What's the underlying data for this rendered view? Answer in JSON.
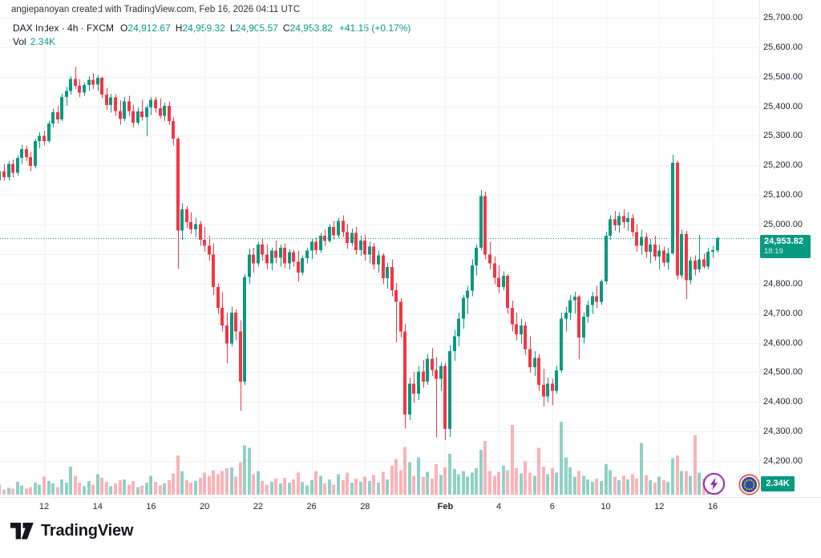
{
  "header": {
    "attribution": "angiepanoyan created with TradingView.com, Feb 16, 2026 04:11 UTC"
  },
  "legend": {
    "symbol_title": "DAX Index · 4h · FXCM",
    "o_label": "O",
    "o_value": "24,912.67",
    "h_label": "H",
    "h_value": "24,959.32",
    "l_label": "L",
    "l_value": "24,905.57",
    "c_label": "C",
    "c_value": "24,953.82",
    "change": "+41.15 (+0.17%)",
    "vol_label": "Vol",
    "vol_value": "2.34K"
  },
  "price_badge": {
    "price": "24,953.82",
    "countdown": "18:19"
  },
  "volume_badge": {
    "value": "2.34K"
  },
  "logo": {
    "text": "TradingView"
  },
  "icons": {
    "boost": "lightning-icon",
    "market_flag": "eu-flag-icon",
    "logo_mark": "tradingview-mark-icon"
  },
  "colors": {
    "up": "#089981",
    "down": "#f23645",
    "vol_up": "rgba(8,153,129,0.45)",
    "vol_down": "rgba(242,54,69,0.38)",
    "grid": "#f0f2f5",
    "axis_border": "#e4e7ec",
    "text": "#131722",
    "badge_bg": "#089981",
    "badge_text": "#ffffff",
    "lightning_purple": "#9c27b0",
    "eu_blue": "#2a4fa2",
    "eu_ring_red": "#ef5350",
    "eu_star_yellow": "#ffcc00"
  },
  "chart_data": {
    "type": "candlestick",
    "symbol": "DAX Index",
    "interval": "4h",
    "exchange": "FXCM",
    "last": {
      "open": 24912.67,
      "high": 24959.32,
      "low": 24905.57,
      "close": 24953.82,
      "change": 41.15,
      "change_pct": 0.17
    },
    "price_line": 24953.82,
    "current_volume_k": 2.34,
    "y_axis": {
      "min": 24200,
      "max": 25700,
      "step": 100,
      "ticks": [
        {
          "label": "25,700.00",
          "value": 25700
        },
        {
          "label": "25,600.00",
          "value": 25600
        },
        {
          "label": "25,500.00",
          "value": 25500
        },
        {
          "label": "25,400.00",
          "value": 25400
        },
        {
          "label": "25,300.00",
          "value": 25300
        },
        {
          "label": "25,200.00",
          "value": 25200
        },
        {
          "label": "25,100.00",
          "value": 25100
        },
        {
          "label": "25,000.00",
          "value": 25000
        },
        {
          "label": "24,900.00",
          "value": 24900
        },
        {
          "label": "24,800.00",
          "value": 24800
        },
        {
          "label": "24,700.00",
          "value": 24700
        },
        {
          "label": "24,600.00",
          "value": 24600
        },
        {
          "label": "24,500.00",
          "value": 24500
        },
        {
          "label": "24,400.00",
          "value": 24400
        },
        {
          "label": "24,300.00",
          "value": 24300
        },
        {
          "label": "24,200.00",
          "value": 24200
        }
      ]
    },
    "x_axis": {
      "ticks": [
        {
          "label": "12",
          "index": 10
        },
        {
          "label": "14",
          "index": 22
        },
        {
          "label": "16",
          "index": 34
        },
        {
          "label": "20",
          "index": 46
        },
        {
          "label": "22",
          "index": 58
        },
        {
          "label": "26",
          "index": 70
        },
        {
          "label": "28",
          "index": 82
        },
        {
          "label": "Feb",
          "index": 100,
          "bold": true
        },
        {
          "label": "4",
          "index": 112
        },
        {
          "label": "6",
          "index": 124
        },
        {
          "label": "10",
          "index": 136
        },
        {
          "label": "12",
          "index": 148
        },
        {
          "label": "16",
          "index": 160
        }
      ]
    },
    "candles": [
      [
        25150,
        25195,
        25115,
        25180
      ],
      [
        25180,
        25205,
        25150,
        25160
      ],
      [
        25160,
        25215,
        25150,
        25205
      ],
      [
        25205,
        25220,
        25160,
        25175
      ],
      [
        25175,
        25235,
        25165,
        25225
      ],
      [
        25225,
        25270,
        25205,
        25255
      ],
      [
        25255,
        25268,
        25215,
        25228
      ],
      [
        25228,
        25245,
        25180,
        25198
      ],
      [
        25198,
        25290,
        25190,
        25282
      ],
      [
        25282,
        25312,
        25258,
        25300
      ],
      [
        25300,
        25318,
        25268,
        25282
      ],
      [
        25282,
        25352,
        25276,
        25342
      ],
      [
        25342,
        25392,
        25330,
        25380
      ],
      [
        25380,
        25402,
        25342,
        25356
      ],
      [
        25356,
        25442,
        25350,
        25432
      ],
      [
        25432,
        25465,
        25402,
        25452
      ],
      [
        25452,
        25502,
        25440,
        25492
      ],
      [
        25492,
        25533,
        25458,
        25470
      ],
      [
        25470,
        25492,
        25430,
        25446
      ],
      [
        25446,
        25482,
        25436,
        25472
      ],
      [
        25472,
        25502,
        25452,
        25490
      ],
      [
        25490,
        25512,
        25458,
        25474
      ],
      [
        25474,
        25506,
        25452,
        25496
      ],
      [
        25496,
        25500,
        25428,
        25440
      ],
      [
        25440,
        25462,
        25388,
        25404
      ],
      [
        25404,
        25442,
        25378,
        25430
      ],
      [
        25430,
        25441,
        25368,
        25384
      ],
      [
        25384,
        25420,
        25338,
        25358
      ],
      [
        25358,
        25432,
        25350,
        25416
      ],
      [
        25416,
        25436,
        25368,
        25384
      ],
      [
        25384,
        25406,
        25328,
        25344
      ],
      [
        25344,
        25396,
        25338,
        25382
      ],
      [
        25382,
        25422,
        25352,
        25364
      ],
      [
        25364,
        25406,
        25298,
        25396
      ],
      [
        25396,
        25432,
        25370,
        25422
      ],
      [
        25422,
        25432,
        25378,
        25394
      ],
      [
        25394,
        25426,
        25358,
        25368
      ],
      [
        25368,
        25412,
        25350,
        25402
      ],
      [
        25402,
        25416,
        25338,
        25350
      ],
      [
        25350,
        25362,
        25268,
        25290
      ],
      [
        25290,
        25296,
        24850,
        24980
      ],
      [
        24980,
        25072,
        24948,
        25052
      ],
      [
        25052,
        25062,
        24988,
        25008
      ],
      [
        25008,
        25042,
        24968,
        24984
      ],
      [
        24984,
        25022,
        24958,
        25002
      ],
      [
        25002,
        25012,
        24928,
        24948
      ],
      [
        24948,
        24992,
        24908,
        24928
      ],
      [
        24928,
        24962,
        24878,
        24898
      ],
      [
        24898,
        24936,
        24762,
        24788
      ],
      [
        24788,
        24802,
        24698,
        24718
      ],
      [
        24718,
        24772,
        24638,
        24658
      ],
      [
        24658,
        24702,
        24531,
        24598
      ],
      [
        24598,
        24722,
        24588,
        24702
      ],
      [
        24702,
        24712,
        24608,
        24638
      ],
      [
        24638,
        24676,
        24369,
        24468
      ],
      [
        24468,
        24832,
        24456,
        24822
      ],
      [
        24822,
        24919,
        24798,
        24898
      ],
      [
        24898,
        24922,
        24838,
        24868
      ],
      [
        24868,
        24942,
        24858,
        24932
      ],
      [
        24932,
        24952,
        24878,
        24898
      ],
      [
        24898,
        24932,
        24848,
        24868
      ],
      [
        24868,
        24922,
        24846,
        24912
      ],
      [
        24912,
        24946,
        24868,
        24888
      ],
      [
        24888,
        24932,
        24858,
        24922
      ],
      [
        24922,
        24936,
        24852,
        24868
      ],
      [
        24868,
        24916,
        24848,
        24906
      ],
      [
        24906,
        24914,
        24858,
        24874
      ],
      [
        24874,
        24912,
        24806,
        24838
      ],
      [
        24838,
        24896,
        24828,
        24886
      ],
      [
        24886,
        24922,
        24868,
        24912
      ],
      [
        24912,
        24952,
        24884,
        24942
      ],
      [
        24942,
        24956,
        24898,
        24914
      ],
      [
        24914,
        24972,
        24904,
        24962
      ],
      [
        24962,
        24982,
        24928,
        24944
      ],
      [
        24944,
        25002,
        24938,
        24992
      ],
      [
        24992,
        25012,
        24948,
        24964
      ],
      [
        24964,
        25023,
        24954,
        25012
      ],
      [
        25012,
        25032,
        24958,
        24974
      ],
      [
        24974,
        25002,
        24918,
        24938
      ],
      [
        24938,
        24986,
        24928,
        24972
      ],
      [
        24972,
        24992,
        24898,
        24914
      ],
      [
        24914,
        24962,
        24894,
        24946
      ],
      [
        24946,
        24966,
        24878,
        24898
      ],
      [
        24898,
        24942,
        24868,
        24926
      ],
      [
        24926,
        24938,
        24848,
        24864
      ],
      [
        24864,
        24912,
        24838,
        24896
      ],
      [
        24896,
        24902,
        24798,
        24818
      ],
      [
        24818,
        24872,
        24783,
        24856
      ],
      [
        24856,
        24882,
        24758,
        24778
      ],
      [
        24778,
        24802,
        24601,
        24738
      ],
      [
        24738,
        24752,
        24618,
        24638
      ],
      [
        24638,
        24662,
        24310,
        24358
      ],
      [
        24358,
        24482,
        24338,
        24462
      ],
      [
        24462,
        24502,
        24398,
        24428
      ],
      [
        24428,
        24522,
        24406,
        24502
      ],
      [
        24502,
        24542,
        24448,
        24468
      ],
      [
        24468,
        24562,
        24458,
        24546
      ],
      [
        24546,
        24582,
        24488,
        24508
      ],
      [
        24508,
        24552,
        24280,
        24478
      ],
      [
        24478,
        24532,
        24438,
        24522
      ],
      [
        24522,
        24532,
        24270,
        24308
      ],
      [
        24308,
        24592,
        24281,
        24572
      ],
      [
        24572,
        24642,
        24538,
        24622
      ],
      [
        24622,
        24702,
        24588,
        24682
      ],
      [
        24682,
        24762,
        24648,
        24752
      ],
      [
        24752,
        24792,
        24698,
        24776
      ],
      [
        24776,
        24882,
        24758,
        24862
      ],
      [
        24862,
        24932,
        24828,
        24922
      ],
      [
        24922,
        25117,
        24912,
        25096
      ],
      [
        25096,
        25112,
        24882,
        24898
      ],
      [
        24898,
        24942,
        24848,
        24868
      ],
      [
        24868,
        24892,
        24798,
        24820
      ],
      [
        24820,
        24862,
        24768,
        24788
      ],
      [
        24788,
        24842,
        24778,
        24826
      ],
      [
        24826,
        24832,
        24698,
        24718
      ],
      [
        24718,
        24742,
        24638,
        24662
      ],
      [
        24662,
        24702,
        24608,
        24628
      ],
      [
        24628,
        24682,
        24597,
        24658
      ],
      [
        24658,
        24672,
        24558,
        24578
      ],
      [
        24578,
        24622,
        24498,
        24518
      ],
      [
        24518,
        24572,
        24488,
        24548
      ],
      [
        24548,
        24562,
        24438,
        24458
      ],
      [
        24458,
        24512,
        24385,
        24418
      ],
      [
        24418,
        24482,
        24398,
        24462
      ],
      [
        24462,
        24478,
        24388,
        24438
      ],
      [
        24438,
        24522,
        24428,
        24506
      ],
      [
        24506,
        24702,
        24498,
        24682
      ],
      [
        24682,
        24722,
        24638,
        24702
      ],
      [
        24702,
        24762,
        24678,
        24744
      ],
      [
        24744,
        24772,
        24698,
        24756
      ],
      [
        24756,
        24762,
        24545,
        24618
      ],
      [
        24618,
        24702,
        24598,
        24688
      ],
      [
        24688,
        24742,
        24668,
        24728
      ],
      [
        24728,
        24772,
        24698,
        24758
      ],
      [
        24758,
        24792,
        24718,
        24738
      ],
      [
        24738,
        24815,
        24728,
        24808
      ],
      [
        24808,
        24975,
        24798,
        24962
      ],
      [
        24962,
        25032,
        24948,
        25018
      ],
      [
        25018,
        25046,
        24978,
        24998
      ],
      [
        24998,
        25042,
        24972,
        25028
      ],
      [
        25028,
        25052,
        24988,
        25008
      ],
      [
        25008,
        25042,
        24978,
        25022
      ],
      [
        25022,
        25036,
        24958,
        24974
      ],
      [
        24974,
        25002,
        24908,
        24928
      ],
      [
        24928,
        24982,
        24898,
        24958
      ],
      [
        24958,
        24972,
        24888,
        24908
      ],
      [
        24908,
        24952,
        24868,
        24932
      ],
      [
        24932,
        24962,
        24878,
        24892
      ],
      [
        24892,
        24932,
        24848,
        24912
      ],
      [
        24912,
        24926,
        24858,
        24872
      ],
      [
        24872,
        24922,
        24847,
        24902
      ],
      [
        24902,
        25236,
        24898,
        25209
      ],
      [
        25209,
        25216,
        24815,
        24828
      ],
      [
        24828,
        24982,
        24818,
        24968
      ],
      [
        24968,
        24978,
        24748,
        24812
      ],
      [
        24812,
        24892,
        24798,
        24878
      ],
      [
        24878,
        24896,
        24828,
        24848
      ],
      [
        24848,
        24965,
        24838,
        24882
      ],
      [
        24882,
        24902,
        24851,
        24858
      ],
      [
        24858,
        24922,
        24848,
        24908
      ],
      [
        24908,
        24928,
        24888,
        24913
      ],
      [
        24912.67,
        24959.32,
        24905.57,
        24953.82
      ]
    ],
    "volumes_k": [
      1.2,
      0.6,
      0.8,
      0.7,
      1.5,
      1.1,
      0.7,
      0.9,
      1.4,
      1.2,
      2.1,
      1.6,
      1.3,
      0.9,
      1.8,
      1.4,
      3.3,
      2.2,
      1.4,
      1.0,
      1.6,
      1.2,
      2.4,
      2.0,
      1.5,
      1.0,
      1.3,
      1.7,
      1.8,
      1.2,
      1.6,
      0.9,
      1.1,
      1.4,
      2.2,
      1.5,
      1.1,
      1.3,
      1.7,
      2.5,
      4.6,
      2.8,
      1.7,
      1.4,
      1.6,
      2.0,
      2.6,
      2.2,
      2.9,
      2.4,
      2.8,
      3.1,
      3.2,
      2.1,
      3.8,
      5.8,
      5.5,
      2.4,
      2.8,
      1.6,
      1.2,
      1.5,
      1.9,
      1.3,
      2.0,
      1.4,
      1.8,
      2.6,
      1.5,
      1.1,
      1.7,
      2.8,
      2.2,
      1.3,
      1.8,
      1.2,
      2.4,
      1.7,
      2.6,
      1.4,
      1.9,
      1.5,
      2.1,
      1.6,
      2.3,
      1.4,
      2.7,
      1.8,
      3.4,
      4.2,
      2.9,
      5.6,
      3.8,
      2.2,
      4.4,
      2.1,
      2.7,
      1.9,
      3.6,
      2.3,
      3.2,
      4.8,
      3.0,
      2.4,
      2.8,
      2.1,
      2.6,
      3.1,
      5.3,
      6.3,
      2.8,
      2.2,
      2.7,
      3.4,
      2.9,
      8.2,
      3.1,
      2.5,
      3.9,
      2.6,
      2.2,
      5.5,
      3.3,
      2.4,
      3.1,
      2.6,
      8.6,
      4.4,
      3.2,
      2.1,
      2.8,
      2.2,
      1.8,
      1.5,
      1.9,
      1.6,
      3.6,
      2.9,
      2.1,
      1.7,
      2.2,
      1.8,
      2.4,
      1.9,
      6.1,
      2.3,
      1.7,
      1.4,
      2.1,
      1.7,
      1.5,
      4.3,
      4.6,
      2.8,
      2.8,
      2.2,
      7.0,
      2.6,
      1.9,
      1.6,
      0.9,
      2.34
    ]
  }
}
